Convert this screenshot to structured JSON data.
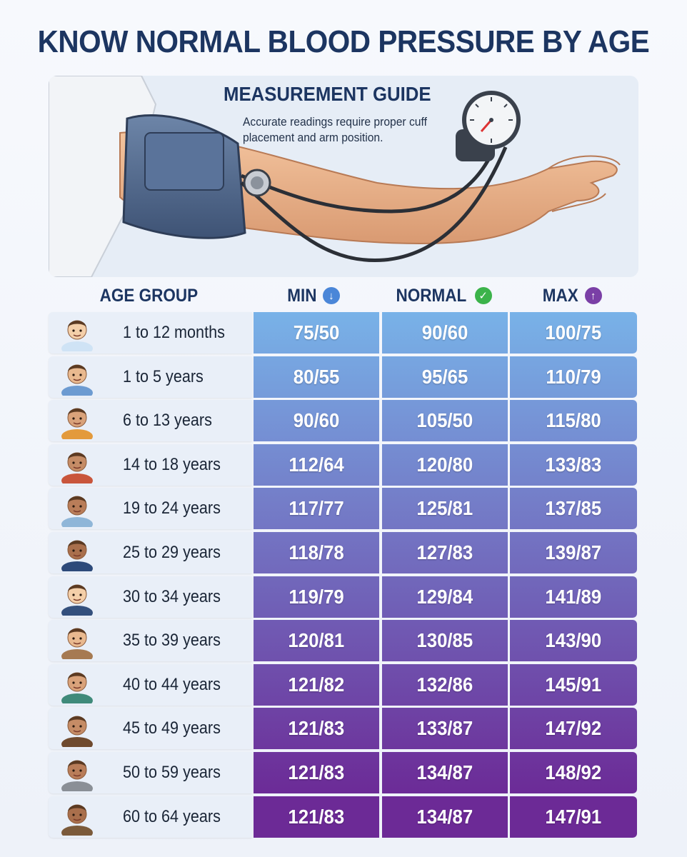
{
  "title": "KNOW NORMAL BLOOD PRESSURE BY AGE",
  "guide": {
    "title": "MEASUREMENT GUIDE",
    "text": "Accurate readings require proper cuff placement and arm position."
  },
  "columns": {
    "age_group": "AGE GROUP",
    "min": "MIN",
    "normal": "NORMAL",
    "max": "MAX"
  },
  "icons": {
    "min": "arrow-down-circle-icon",
    "normal": "check-circle-icon",
    "max": "arrow-up-circle-icon"
  },
  "colors": {
    "title": "#1c3561",
    "min_icon": "#4a86d8",
    "normal_icon": "#3bb34a",
    "max_icon": "#7a3fa6"
  },
  "rows": [
    {
      "age": "1 to 12 months",
      "min": "75/50",
      "normal": "90/60",
      "max": "100/75",
      "avatar": "baby-avatar"
    },
    {
      "age": "1 to 5 years",
      "min": "80/55",
      "normal": "95/65",
      "max": "110/79",
      "avatar": "toddler-avatar"
    },
    {
      "age": "6 to 13 years",
      "min": "90/60",
      "normal": "105/50",
      "max": "115/80",
      "avatar": "child-avatar"
    },
    {
      "age": "14 to 18 years",
      "min": "112/64",
      "normal": "120/80",
      "max": "133/83",
      "avatar": "teen-avatar"
    },
    {
      "age": "19 to 24 years",
      "min": "117/77",
      "normal": "125/81",
      "max": "137/85",
      "avatar": "young-adult-avatar"
    },
    {
      "age": "25 to 29 years",
      "min": "118/78",
      "normal": "127/83",
      "max": "139/87",
      "avatar": "man-suit-avatar"
    },
    {
      "age": "30 to 34 years",
      "min": "119/79",
      "normal": "129/84",
      "max": "141/89",
      "avatar": "businessman-avatar"
    },
    {
      "age": "35 to 39 years",
      "min": "120/81",
      "normal": "130/85",
      "max": "143/90",
      "avatar": "bearded-man-avatar"
    },
    {
      "age": "40 to 44 years",
      "min": "121/82",
      "normal": "132/86",
      "max": "145/91",
      "avatar": "woman-avatar"
    },
    {
      "age": "45 to 49 years",
      "min": "121/83",
      "normal": "133/87",
      "max": "147/92",
      "avatar": "reading-man-avatar"
    },
    {
      "age": "50 to 59 years",
      "min": "121/83",
      "normal": "134/87",
      "max": "148/92",
      "avatar": "older-man-avatar"
    },
    {
      "age": "60 to 64 years",
      "min": "121/83",
      "normal": "134/87",
      "max": "147/91",
      "avatar": "senior-cane-avatar"
    }
  ]
}
